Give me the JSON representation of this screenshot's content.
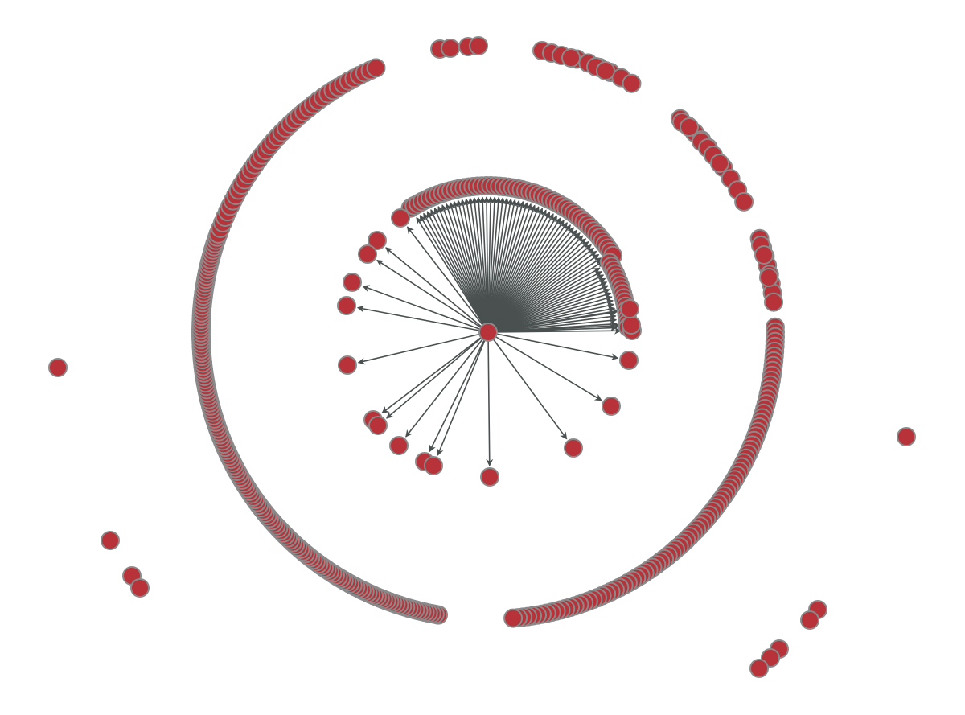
{
  "graph": {
    "node_color": "#b8323a",
    "node_stroke": "#8a8a8a",
    "edge_color": "#4a5050",
    "background": "#ffffff",
    "hub_count": 1,
    "inner_targets": 96,
    "outer_ring_nodes": 260,
    "outlier_groups": 8
  }
}
